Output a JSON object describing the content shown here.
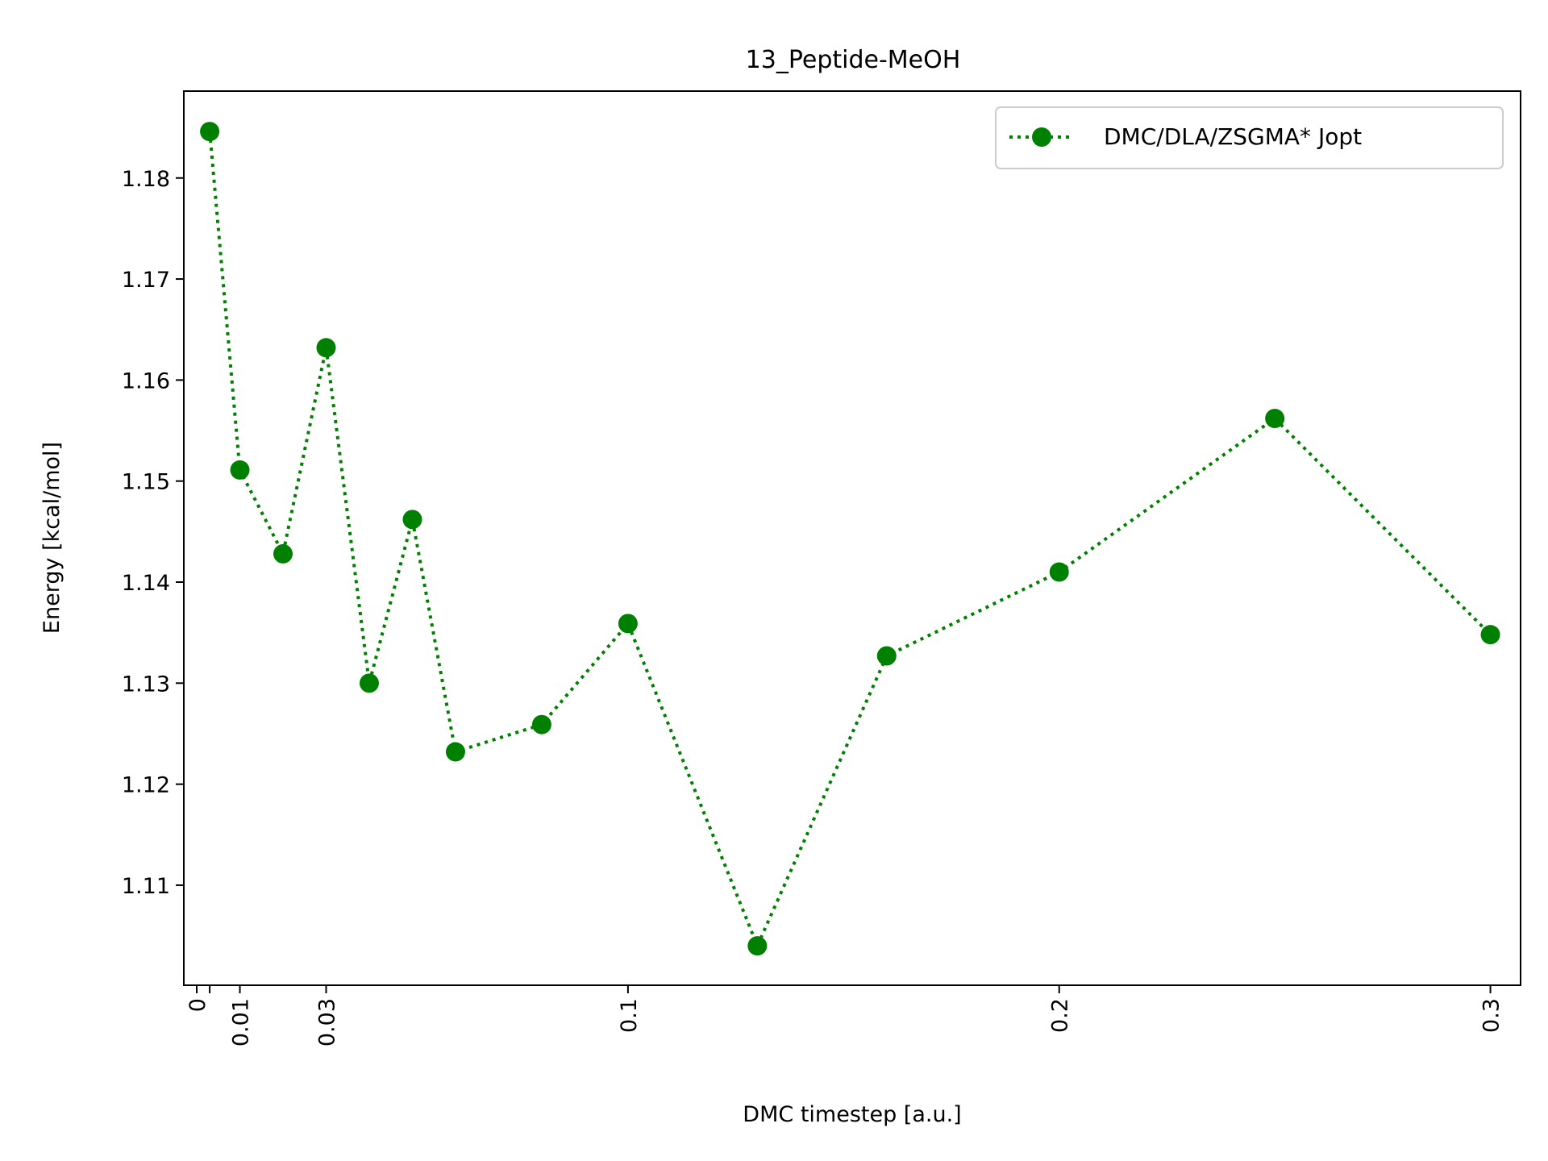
{
  "chart_data": {
    "type": "line",
    "title": "13_Peptide-MeOH",
    "xlabel": "DMC timestep [a.u.]",
    "ylabel": "Energy [kcal/mol]",
    "xlim": [
      -0.003,
      0.307
    ],
    "ylim": [
      1.1001,
      1.1886
    ],
    "grid": false,
    "legend_position": "top-right",
    "x_ticks": [
      {
        "value": 0,
        "label": "0"
      },
      {
        "value": 0.003,
        "label": ""
      },
      {
        "value": 0.01,
        "label": "0.01"
      },
      {
        "value": 0.03,
        "label": "0.03"
      },
      {
        "value": 0.1,
        "label": "0.1"
      },
      {
        "value": 0.2,
        "label": "0.2"
      },
      {
        "value": 0.3,
        "label": "0.3"
      }
    ],
    "y_ticks": [
      {
        "value": 1.11,
        "label": "1.11"
      },
      {
        "value": 1.12,
        "label": "1.12"
      },
      {
        "value": 1.13,
        "label": "1.13"
      },
      {
        "value": 1.14,
        "label": "1.14"
      },
      {
        "value": 1.15,
        "label": "1.15"
      },
      {
        "value": 1.16,
        "label": "1.16"
      },
      {
        "value": 1.17,
        "label": "1.17"
      },
      {
        "value": 1.18,
        "label": "1.18"
      }
    ],
    "series": [
      {
        "name": "DMC/DLA/ZSGMA* Jopt",
        "color": "#008000",
        "line_style": "dotted",
        "marker": "circle",
        "x": [
          0.003,
          0.01,
          0.02,
          0.03,
          0.04,
          0.05,
          0.06,
          0.08,
          0.1,
          0.13,
          0.16,
          0.2,
          0.25,
          0.3
        ],
        "y": [
          1.1846,
          1.1511,
          1.1428,
          1.1632,
          1.13,
          1.1462,
          1.1232,
          1.1259,
          1.1359,
          1.104,
          1.1327,
          1.141,
          1.1562,
          1.1348
        ]
      }
    ]
  }
}
